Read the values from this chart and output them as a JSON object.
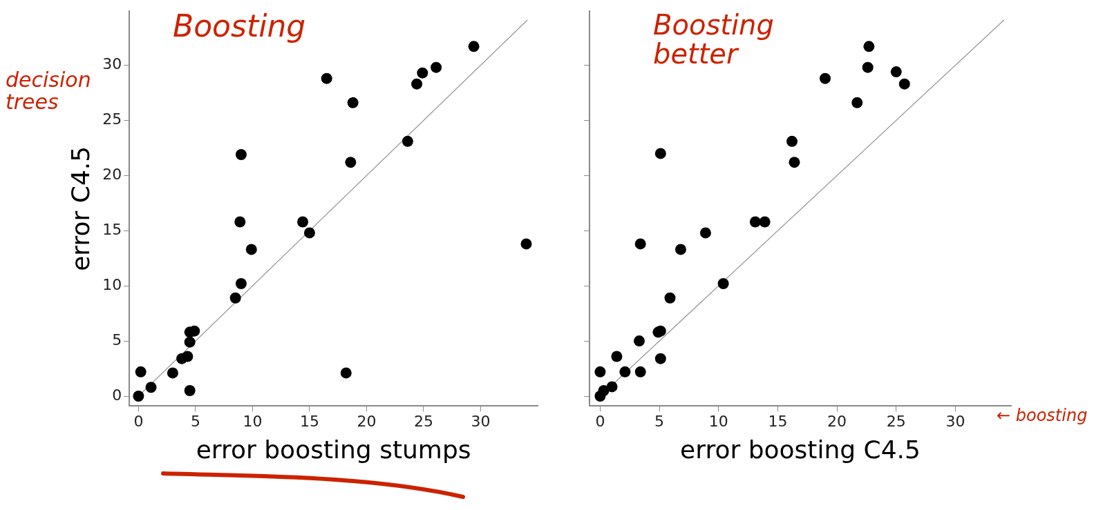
{
  "chart_data": [
    {
      "type": "scatter",
      "xlabel": "error boosting stumps",
      "ylabel": "error C4.5",
      "xlim": [
        -0.8,
        35
      ],
      "ylim": [
        -0.9,
        34.9
      ],
      "xticks": [
        0,
        5,
        10,
        15,
        20,
        25,
        30
      ],
      "yticks": [
        0,
        5,
        10,
        15,
        20,
        25,
        30
      ],
      "grid": false,
      "legend": false,
      "marker": "circle",
      "annotations": [
        "Boosting",
        "decision trees"
      ],
      "series": [
        {
          "type": "scatter",
          "color": "#000000",
          "x": [
            0,
            0.2,
            1.1,
            3.0,
            3.8,
            4.3,
            4.5,
            4.5,
            4.5,
            4.9,
            8.5,
            9.0,
            9.9,
            8.9,
            9.0,
            14.4,
            15.0,
            16.5,
            18.2,
            18.6,
            18.8,
            23.6,
            24.4,
            24.9,
            26.1,
            29.4,
            34.0
          ],
          "values": [
            0,
            2.2,
            0.8,
            2.1,
            3.4,
            3.6,
            0.5,
            4.9,
            5.8,
            5.9,
            8.9,
            10.2,
            13.3,
            15.8,
            21.9,
            15.8,
            14.8,
            28.8,
            2.1,
            21.2,
            26.6,
            23.1,
            28.3,
            29.3,
            29.8,
            31.7,
            13.8
          ]
        },
        {
          "type": "line",
          "color": "#999999",
          "marker": "none",
          "line_style": "solid",
          "x": [
            0,
            34.1
          ],
          "values": [
            0,
            34.1
          ]
        }
      ]
    },
    {
      "type": "scatter",
      "xlabel": "error boosting C4.5",
      "xlim": [
        -0.9,
        34.7
      ],
      "ylim": [
        -0.9,
        34.9
      ],
      "xticks": [
        0,
        5,
        10,
        15,
        20,
        25,
        30
      ],
      "yticks": [
        {
          "value": 0,
          "label": null
        },
        {
          "value": 5,
          "label": null
        },
        {
          "value": 10,
          "label": null
        },
        {
          "value": 15,
          "label": null
        },
        {
          "value": 20,
          "label": null
        },
        {
          "value": 25,
          "label": null
        },
        {
          "value": 30,
          "label": null
        }
      ],
      "tick_labels": "x",
      "grid": false,
      "legend": false,
      "marker": "circle",
      "annotations": [
        "Boosting better",
        "← boosting"
      ],
      "series": [
        {
          "type": "scatter",
          "color": "#000000",
          "x": [
            0,
            0.3,
            1.0,
            0,
            2.1,
            3.4,
            1.4,
            3.3,
            5.1,
            4.9,
            5.1,
            5.9,
            10.4,
            6.8,
            3.4,
            8.9,
            13.1,
            13.9,
            5.1,
            16.2,
            16.4,
            19.0,
            21.7,
            22.6,
            22.7,
            25.0,
            25.7
          ],
          "values": [
            0,
            0.5,
            0.85,
            2.2,
            2.2,
            2.2,
            3.6,
            5.0,
            3.4,
            5.8,
            5.9,
            8.9,
            10.2,
            13.3,
            13.8,
            14.8,
            15.8,
            15.8,
            22.0,
            23.1,
            21.2,
            28.8,
            26.6,
            29.8,
            31.7,
            29.4,
            28.3
          ]
        },
        {
          "type": "line",
          "color": "#999999",
          "marker": "none",
          "line_style": "solid",
          "x": [
            0,
            34.1
          ],
          "values": [
            0,
            34.1
          ]
        }
      ]
    }
  ]
}
